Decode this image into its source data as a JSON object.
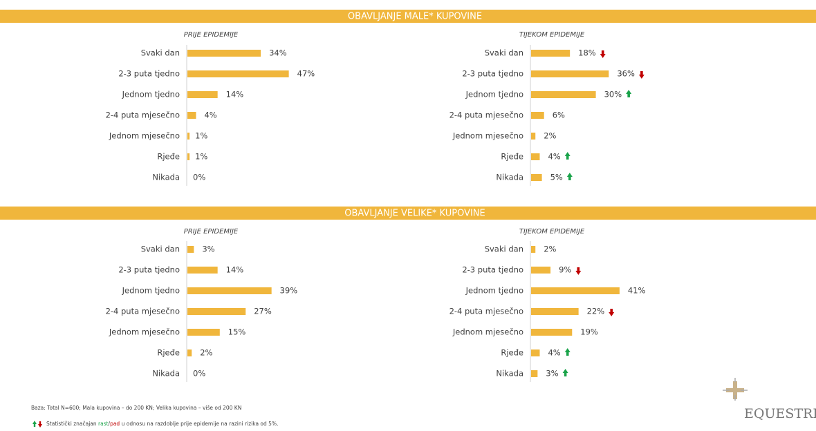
{
  "headers": [
    "OBAVLJANJE MALE* KUPOVINE",
    "OBAVLJANJE VELIKE* KUPOVINE"
  ],
  "chart_data": [
    {
      "type": "bar",
      "orientation": "horizontal",
      "subtitle": "PRIJE EPIDEMIJE",
      "color": "#f0b63c",
      "categories": [
        "Svaki dan",
        "2-3 puta tjedno",
        "Jednom tjedno",
        "2-4 puta mjesečno",
        "Jednom mjesečno",
        "Rjeđe",
        "Nikada"
      ],
      "values": [
        34,
        47,
        14,
        4,
        1,
        1,
        0
      ],
      "value_labels": [
        "34%",
        "47%",
        "14%",
        "4%",
        "1%",
        "1%",
        "0%"
      ]
    },
    {
      "type": "bar",
      "orientation": "horizontal",
      "subtitle": "TIJEKOM EPIDEMIJE",
      "color": "#f0b63c",
      "categories": [
        "Svaki dan",
        "2-3 puta tjedno",
        "Jednom tjedno",
        "2-4 puta mjesečno",
        "Jednom mjesečno",
        "Rjeđe",
        "Nikada"
      ],
      "values": [
        18,
        36,
        30,
        6,
        2,
        4,
        5
      ],
      "value_labels": [
        "18%",
        "36%",
        "30%",
        "6%",
        "2%",
        "4%",
        "5%"
      ],
      "trend": [
        "down",
        "down",
        "up",
        null,
        null,
        "up",
        "up"
      ]
    },
    {
      "type": "bar",
      "orientation": "horizontal",
      "subtitle": "PRIJE EPIDEMIJE",
      "color": "#f0b63c",
      "categories": [
        "Svaki dan",
        "2-3 puta tjedno",
        "Jednom tjedno",
        "2-4 puta mjesečno",
        "Jednom mjesečno",
        "Rjeđe",
        "Nikada"
      ],
      "values": [
        3,
        14,
        39,
        27,
        15,
        2,
        0
      ],
      "value_labels": [
        "3%",
        "14%",
        "39%",
        "27%",
        "15%",
        "2%",
        "0%"
      ]
    },
    {
      "type": "bar",
      "orientation": "horizontal",
      "subtitle": "TIJEKOM EPIDEMIJE",
      "color": "#f0b63c",
      "categories": [
        "Svaki dan",
        "2-3 puta tjedno",
        "Jednom tjedno",
        "2-4 puta mjesečno",
        "Jednom mjesečno",
        "Rjeđe",
        "Nikada"
      ],
      "values": [
        2,
        9,
        41,
        22,
        19,
        4,
        3
      ],
      "value_labels": [
        "2%",
        "9%",
        "41%",
        "22%",
        "19%",
        "4%",
        "3%"
      ],
      "trend": [
        null,
        "down",
        null,
        "down",
        null,
        "up",
        "up"
      ]
    }
  ],
  "footer": {
    "base": "Baza: Total N=600; Mala kupovina – do 200 KN; Velika kupovina – više od 200 KN",
    "note": [
      "Statistički značajan ",
      "rast",
      "/",
      "pad",
      " u odnosu na razdoblje prije epidemije na razini rizika od 5%."
    ]
  },
  "logo": "EQUESTRI"
}
